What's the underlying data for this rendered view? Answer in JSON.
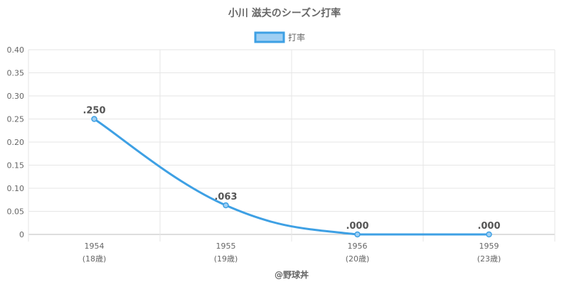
{
  "chart_data": {
    "type": "line",
    "title": "小川 滋夫のシーズン打率",
    "xlabel": "@野球丼",
    "ylabel": "",
    "ylim": [
      0,
      0.4
    ],
    "yticks": [
      "0",
      "0.05",
      "0.10",
      "0.15",
      "0.20",
      "0.25",
      "0.30",
      "0.35",
      "0.40"
    ],
    "categories": [
      "1954",
      "1955",
      "1956",
      "1959"
    ],
    "category_sublabels": [
      "(18歳)",
      "(19歳)",
      "(20歳)",
      "(23歳)"
    ],
    "series": [
      {
        "name": "打率",
        "values": [
          0.25,
          0.063,
          0.0,
          0.0
        ],
        "data_labels": [
          ".250",
          ".063",
          ".000",
          ".000"
        ]
      }
    ],
    "legend_position": "top-center",
    "grid": true,
    "colors": {
      "line": "#3ea0e4",
      "legend_fill": "#9fcff3",
      "legend_border": "#3ea0e4"
    }
  }
}
